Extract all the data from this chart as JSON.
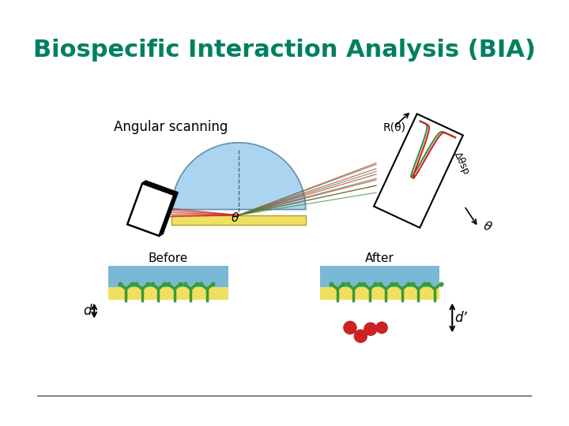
{
  "title": "Biospecific Interaction Analysis (BIA)",
  "title_color": "#008060",
  "title_fontsize": 22,
  "bg_color": "#ffffff",
  "angular_scanning_text": "Angular scanning",
  "before_text": "Before",
  "after_text": "After",
  "d_text": "d",
  "dprime_text": "d’",
  "theta_label": "θ",
  "r_theta_label": "R(θ)",
  "delta_sp_label": "Δθsp",
  "prism_color": "#aad4f0",
  "gold_color": "#f0e060",
  "layer_blue": "#7ab8d8",
  "layer_yellow": "#f0e060",
  "antibody_color": "#3a9a3a",
  "analyte_color": "#cc2222",
  "detector_bg": "#ffffff"
}
